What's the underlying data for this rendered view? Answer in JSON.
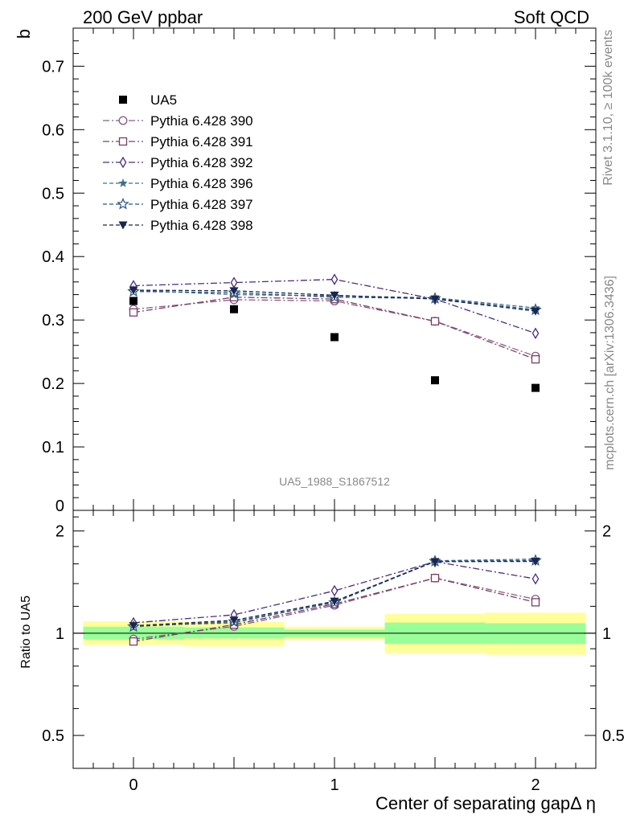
{
  "header": {
    "left": "200 GeV ppbar",
    "right": "Soft QCD"
  },
  "side_labels": {
    "rivet": "Rivet 3.1.10, ≥ 100k events",
    "mcplots": "mcplots.cern.ch [arXiv:1306.3436]"
  },
  "analysis_id": "UA5_1988_S1867512",
  "chart_data": {
    "type": "scatter",
    "xlabel": "Center of separating gapΔ η",
    "ylabel": "b",
    "ratio_ylabel": "Ratio to UA5",
    "xlim": [
      -0.3,
      2.3
    ],
    "ylim": [
      0,
      0.76
    ],
    "ratio_ylim": [
      0.4,
      2.3
    ],
    "ratio_scale": "log",
    "x_ticks": [
      "0",
      "1",
      "2"
    ],
    "y_ticks": [
      "0.1",
      "0.2",
      "0.3",
      "0.4",
      "0.5",
      "0.6",
      "0.7"
    ],
    "y_zero_label": "0",
    "ratio_ticks": [
      "0.5",
      "1",
      "2"
    ],
    "legend_position": "top-left",
    "x": [
      0,
      0.5,
      1,
      1.5,
      2
    ],
    "data": {
      "name": "UA5",
      "values": [
        0.33,
        0.317,
        0.273,
        0.205,
        0.193
      ],
      "color": "#000000",
      "marker": "filled-square"
    },
    "series": [
      {
        "name": "Pythia 6.428 390",
        "values": [
          0.317,
          0.332,
          0.33,
          0.298,
          0.243
        ],
        "color": "#8b5a8b",
        "marker": "open-circle",
        "dash": "8 3 2 3"
      },
      {
        "name": "Pythia 6.428 391",
        "values": [
          0.312,
          0.336,
          0.333,
          0.298,
          0.238
        ],
        "color": "#7a4060",
        "marker": "open-square",
        "dash": "8 3 2 3"
      },
      {
        "name": "Pythia 6.428 392",
        "values": [
          0.354,
          0.359,
          0.364,
          0.333,
          0.279
        ],
        "color": "#4b2a80",
        "marker": "open-diamond",
        "dash": "8 3 2 3"
      },
      {
        "name": "Pythia 6.428 396",
        "values": [
          0.347,
          0.34,
          0.338,
          0.335,
          0.319
        ],
        "color": "#3f6f8a",
        "marker": "filled-star",
        "dash": "5 3"
      },
      {
        "name": "Pythia 6.428 397",
        "values": [
          0.345,
          0.343,
          0.336,
          0.334,
          0.316
        ],
        "color": "#2b5580",
        "marker": "open-star",
        "dash": "5 3"
      },
      {
        "name": "Pythia 6.428 398",
        "values": [
          0.347,
          0.346,
          0.339,
          0.333,
          0.314
        ],
        "color": "#1a2650",
        "marker": "filled-triangle-down",
        "dash": "5 3"
      }
    ],
    "ratio_band": {
      "bins": [
        [
          -0.25,
          0.25
        ],
        [
          0.25,
          0.75
        ],
        [
          0.75,
          1.25
        ],
        [
          1.25,
          1.75
        ],
        [
          1.75,
          2.25
        ]
      ],
      "inner_color": "#99ff99",
      "outer_color": "#ffff99",
      "inner": [
        [
          0.96,
          1.045
        ],
        [
          0.965,
          1.04
        ],
        [
          0.975,
          1.025
        ],
        [
          0.93,
          1.075
        ],
        [
          0.93,
          1.07
        ]
      ],
      "outer": [
        [
          0.925,
          1.085
        ],
        [
          0.915,
          1.08
        ],
        [
          0.955,
          1.045
        ],
        [
          0.875,
          1.14
        ],
        [
          0.865,
          1.15
        ]
      ]
    }
  }
}
